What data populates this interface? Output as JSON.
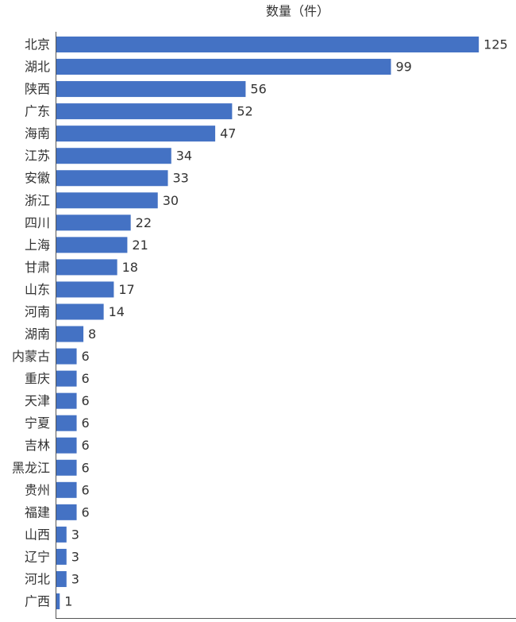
{
  "chart_data": {
    "type": "bar",
    "orientation": "horizontal",
    "title": "数量（件）",
    "categories": [
      "北京",
      "湖北",
      "陕西",
      "广东",
      "海南",
      "江苏",
      "安徽",
      "浙江",
      "四川",
      "上海",
      "甘肃",
      "山东",
      "河南",
      "湖南",
      "内蒙古",
      "重庆",
      "天津",
      "宁夏",
      "吉林",
      "黑龙江",
      "贵州",
      "福建",
      "山西",
      "辽宁",
      "河北",
      "广西"
    ],
    "values": [
      125,
      99,
      56,
      52,
      47,
      34,
      33,
      30,
      22,
      21,
      18,
      17,
      14,
      8,
      6,
      6,
      6,
      6,
      6,
      6,
      6,
      6,
      3,
      3,
      3,
      1
    ],
    "color": "#4472c4",
    "xlim": [
      0,
      136
    ]
  }
}
